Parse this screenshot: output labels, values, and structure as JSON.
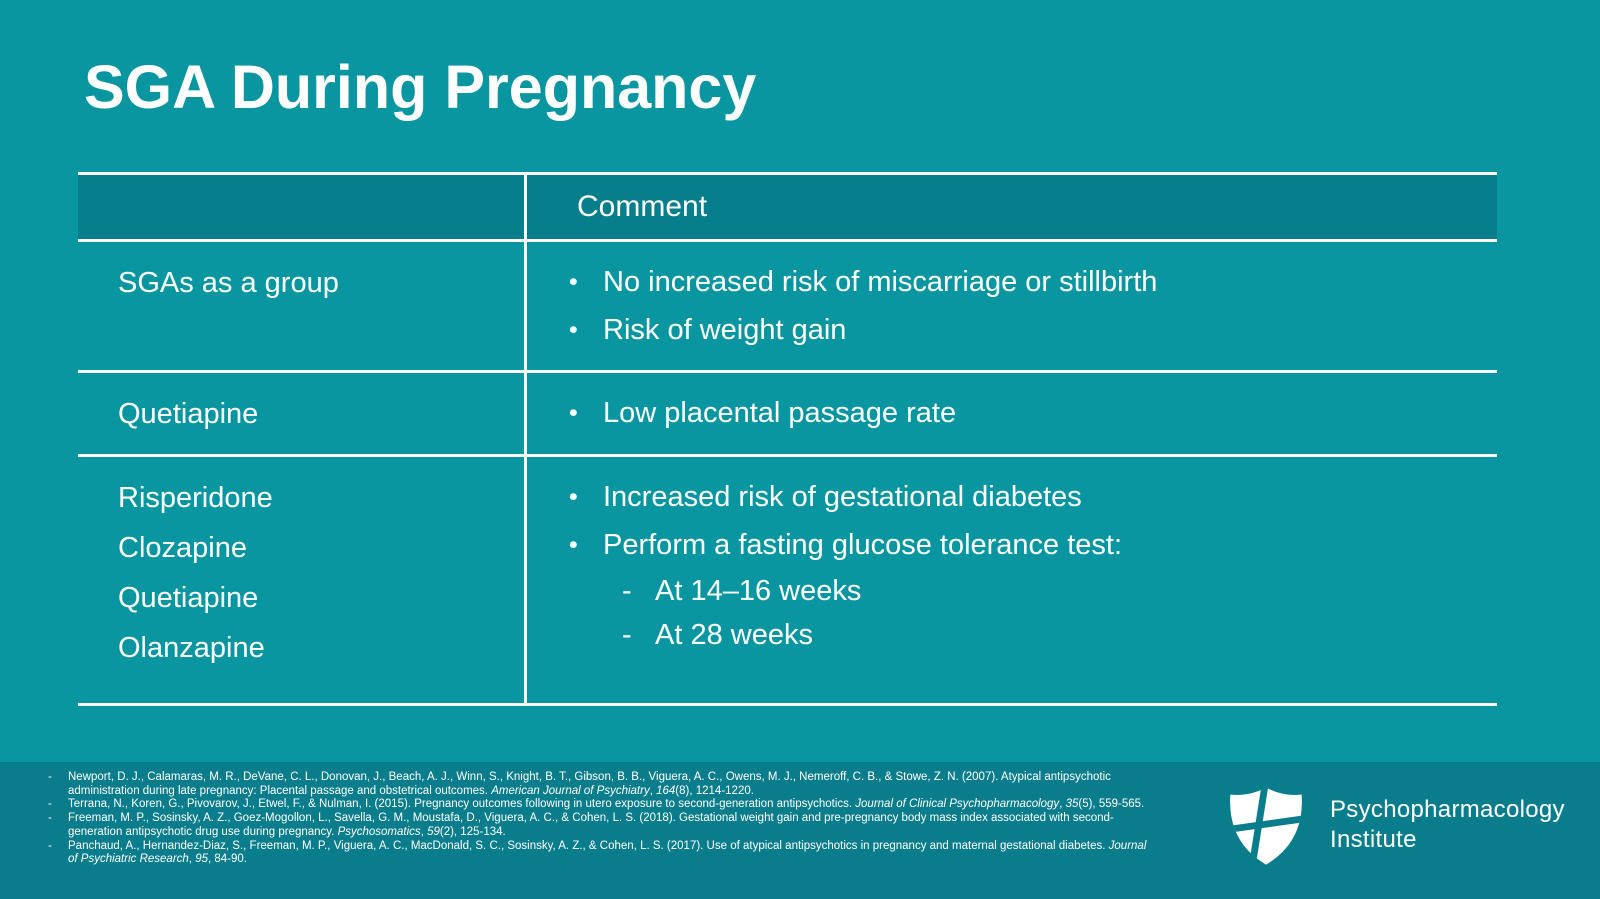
{
  "slide": {
    "title": "SGA During Pregnancy",
    "colors": {
      "background": "#0A96A0",
      "header_fill": "#077E8C",
      "footer_fill": "#0A7D8C",
      "text": "#FFFFFF",
      "border": "#FFFFFF"
    }
  },
  "table": {
    "columns": [
      "",
      "Comment"
    ],
    "rows": [
      {
        "drugs": [
          "SGAs as a group"
        ],
        "comments": [
          {
            "level": 1,
            "text": "No increased risk of miscarriage or stillbirth"
          },
          {
            "level": 1,
            "text": "Risk of weight gain"
          }
        ]
      },
      {
        "drugs": [
          "Quetiapine"
        ],
        "comments": [
          {
            "level": 1,
            "text": "Low placental passage rate"
          }
        ]
      },
      {
        "drugs": [
          "Risperidone",
          "Clozapine",
          "Quetiapine",
          "Olanzapine"
        ],
        "comments": [
          {
            "level": 1,
            "text": "Increased risk of gestational diabetes"
          },
          {
            "level": 1,
            "text": "Perform a fasting glucose tolerance test:"
          },
          {
            "level": 2,
            "text": "At 14–16 weeks"
          },
          {
            "level": 2,
            "text": "At 28 weeks"
          }
        ]
      }
    ],
    "bullet_glyph": "•",
    "sub_bullet_glyph": "-"
  },
  "footer": {
    "references": [
      [
        {
          "t": "Newport, D. J., Calamaras, M. R., DeVane, C. L., Donovan, J., Beach, A. J., Winn, S., Knight, B. T., Gibson, B. B., Viguera, A. C., Owens, M. J., Nemeroff, C. B., & Stowe, Z. N. (2007). Atypical antipsychotic administration during late pregnancy: Placental passage and obstetrical outcomes. "
        },
        {
          "t": "American Journal of Psychiatry",
          "i": true
        },
        {
          "t": ", "
        },
        {
          "t": "164",
          "i": true
        },
        {
          "t": "(8), 1214-1220."
        }
      ],
      [
        {
          "t": "Terrana, N., Koren, G., Pivovarov, J., Etwel, F., & Nulman, I. (2015). Pregnancy outcomes following in utero exposure to second-generation antipsychotics. "
        },
        {
          "t": "Journal of Clinical Psychopharmacology",
          "i": true
        },
        {
          "t": ", "
        },
        {
          "t": "35",
          "i": true
        },
        {
          "t": "(5), 559-565."
        }
      ],
      [
        {
          "t": "Freeman, M. P., Sosinsky, A. Z., Goez-Mogollon, L., Savella, G. M., Moustafa, D., Viguera, A. C., & Cohen, L. S. (2018). Gestational weight gain and pre-pregnancy body mass index associated with second-generation antipsychotic drug use during pregnancy. "
        },
        {
          "t": "Psychosomatics",
          "i": true
        },
        {
          "t": ", "
        },
        {
          "t": "59",
          "i": true
        },
        {
          "t": "(2), 125-134."
        }
      ],
      [
        {
          "t": "Panchaud, A., Hernandez-Diaz, S., Freeman, M. P., Viguera, A. C., MacDonald, S. C., Sosinsky, A. Z., & Cohen, L. S. (2017). Use of atypical antipsychotics in pregnancy and maternal gestational diabetes. "
        },
        {
          "t": "Journal of Psychiatric Research",
          "i": true
        },
        {
          "t": ", "
        },
        {
          "t": "95",
          "i": true
        },
        {
          "t": ", 84-90."
        }
      ]
    ],
    "logo": {
      "icon": "shield-cross-icon",
      "line1": "Psychopharmacology",
      "line2": "Institute"
    }
  }
}
